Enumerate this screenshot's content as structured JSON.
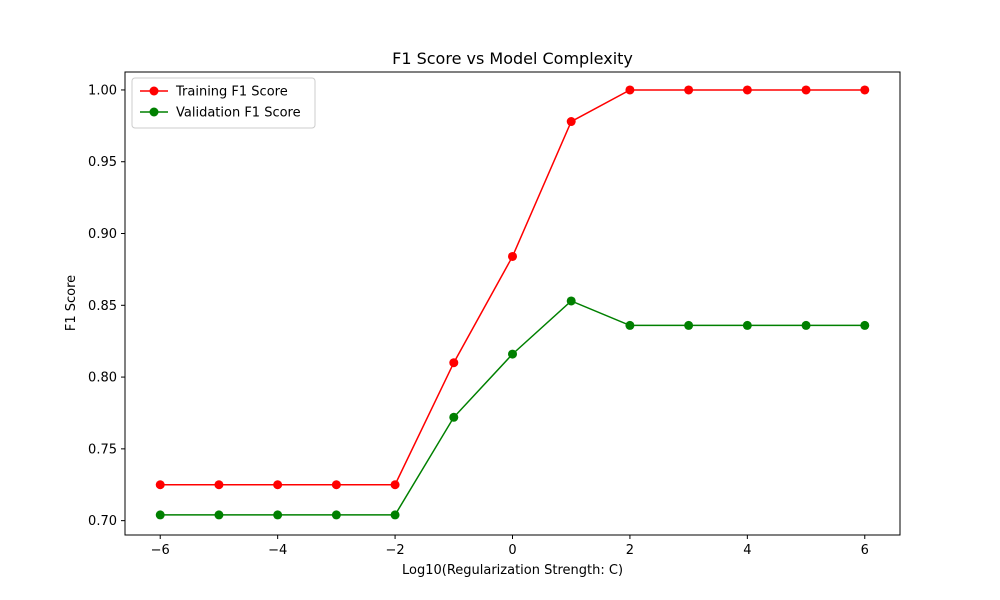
{
  "chart_data": {
    "type": "line",
    "title": "F1 Score vs Model Complexity",
    "xlabel": "Log10(Regularization Strength: C)",
    "ylabel": "F1 Score",
    "xlim": [
      -6.6,
      6.6
    ],
    "ylim": [
      0.69,
      1.0125
    ],
    "xticks": [
      -6,
      -4,
      -2,
      0,
      2,
      4,
      6
    ],
    "xtick_labels": [
      "−6",
      "−4",
      "−2",
      "0",
      "2",
      "4",
      "6"
    ],
    "yticks": [
      0.7,
      0.75,
      0.8,
      0.85,
      0.9,
      0.95,
      1.0
    ],
    "ytick_labels": [
      "0.70",
      "0.75",
      "0.80",
      "0.85",
      "0.90",
      "0.95",
      "1.00"
    ],
    "grid": false,
    "legend_position": "top-left",
    "x": [
      -6,
      -5,
      -4,
      -3,
      -2,
      -1,
      0,
      1,
      2,
      3,
      4,
      5,
      6
    ],
    "series": [
      {
        "name": "Training F1 Score",
        "color": "#ff0000",
        "values": [
          0.725,
          0.725,
          0.725,
          0.725,
          0.725,
          0.81,
          0.884,
          0.978,
          1.0,
          1.0,
          1.0,
          1.0,
          1.0
        ]
      },
      {
        "name": "Validation F1 Score",
        "color": "#008000",
        "values": [
          0.704,
          0.704,
          0.704,
          0.704,
          0.704,
          0.772,
          0.816,
          0.853,
          0.836,
          0.836,
          0.836,
          0.836,
          0.836
        ]
      }
    ]
  }
}
